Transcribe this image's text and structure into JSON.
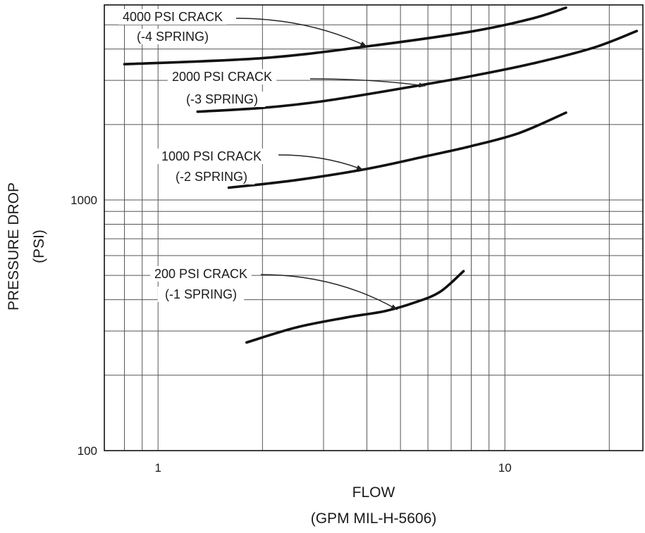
{
  "chart_data": {
    "type": "line",
    "title": "",
    "x_scale": "log",
    "y_scale": "log",
    "xlabel": "FLOW",
    "xlabel_sub": "(GPM MIL-H-5606)",
    "ylabel": "PRESSURE DROP",
    "ylabel_sub": "(PSI)",
    "xlim": [
      0.7,
      25
    ],
    "ylim": [
      100,
      6000
    ],
    "grid": true,
    "x_ticks": [
      {
        "value": 1,
        "label": "1"
      },
      {
        "value": 10,
        "label": "10"
      }
    ],
    "y_ticks": [
      {
        "value": 100,
        "label": "100"
      },
      {
        "value": 1000,
        "label": "1000"
      }
    ],
    "series": [
      {
        "name": "",
        "x": [
          0.8,
          2,
          4,
          8,
          12,
          15
        ],
        "y": [
          3480,
          3680,
          4100,
          4700,
          5300,
          5850
        ]
      },
      {
        "name": "",
        "x": [
          1.3,
          2,
          3,
          5,
          8,
          12,
          18,
          24
        ],
        "y": [
          2250,
          2330,
          2480,
          2780,
          3120,
          3500,
          4050,
          4720
        ]
      },
      {
        "name": "",
        "x": [
          1.6,
          2.5,
          4,
          6,
          8,
          11,
          15
        ],
        "y": [
          1120,
          1200,
          1330,
          1500,
          1640,
          1850,
          2230
        ]
      },
      {
        "name": "",
        "x": [
          1.8,
          2.5,
          3.5,
          4.5,
          5.5,
          6.5,
          7.6
        ],
        "y": [
          270,
          310,
          340,
          360,
          390,
          430,
          520
        ]
      }
    ],
    "annotations": [
      {
        "lines": [
          "4000 PSI CRACK",
          "(-4 SPRING)"
        ],
        "target_x": 4,
        "target_y": 4100
      },
      {
        "lines": [
          "2000 PSI CRACK",
          "(-3 SPRING)"
        ],
        "target_x": 5.9,
        "target_y": 2850
      },
      {
        "lines": [
          "1000 PSI CRACK",
          "(-2 SPRING)"
        ],
        "target_x": 3.9,
        "target_y": 1320
      },
      {
        "lines": [
          "200 PSI CRACK",
          "(-1 SPRING)"
        ],
        "target_x": 4.9,
        "target_y": 365
      }
    ]
  }
}
